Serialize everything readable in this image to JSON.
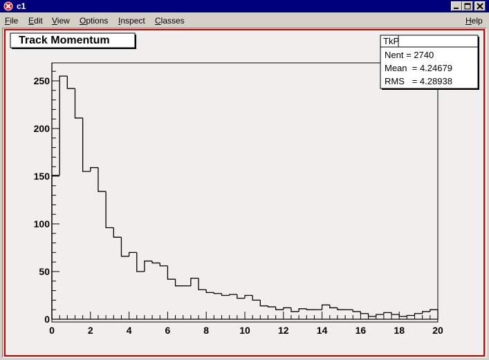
{
  "window": {
    "title": "c1"
  },
  "menu": {
    "file": {
      "u": "F",
      "rest": "ile"
    },
    "edit": {
      "u": "E",
      "rest": "dit"
    },
    "view": {
      "u": "V",
      "rest": "iew"
    },
    "options": {
      "u": "O",
      "rest": "ptions"
    },
    "inspect": {
      "u": "I",
      "rest": "nspect"
    },
    "classes": {
      "u": "C",
      "rest": "lasses"
    },
    "help": {
      "u": "H",
      "rest": "elp"
    }
  },
  "colors": {
    "titlebar": "#00007b",
    "canvas_border": "#c00000",
    "canvas_bg": "#f0efed",
    "hist_line": "#000000"
  },
  "stats": {
    "name": "TkP",
    "nent": "Nent = 2740",
    "mean": "Mean  = 4.24679",
    "rms": "RMS   = 4.28938"
  },
  "chart_data": {
    "type": "bar",
    "title": "Track Momentum",
    "xlabel": "",
    "ylabel": "",
    "xlim": [
      0,
      20
    ],
    "ylim": [
      0,
      267
    ],
    "grid": false,
    "bin_width": 0.4,
    "bin_edges_start": 0,
    "values": [
      151,
      255,
      242,
      211,
      155,
      159,
      134,
      96,
      86,
      66,
      70,
      50,
      61,
      59,
      56,
      42,
      35,
      35,
      43,
      31,
      28,
      27,
      25,
      26,
      22,
      25,
      20,
      14,
      13,
      10,
      12,
      8,
      11,
      10,
      10,
      15,
      12,
      10,
      10,
      8,
      6,
      3,
      5,
      7,
      5,
      3,
      4,
      6,
      8,
      10
    ],
    "x_ticks": [
      "0",
      "2",
      "4",
      "6",
      "8",
      "10",
      "12",
      "14",
      "16",
      "18",
      "20"
    ],
    "y_ticks": [
      "0",
      "50",
      "100",
      "150",
      "200",
      "250"
    ]
  }
}
